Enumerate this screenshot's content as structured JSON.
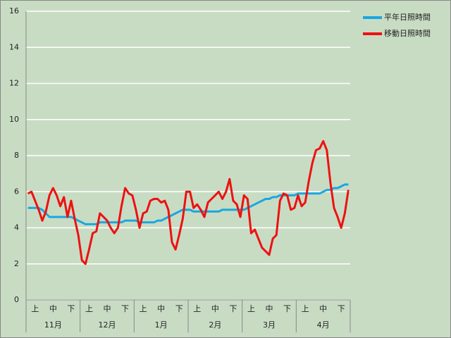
{
  "chart_data": {
    "type": "line",
    "categories": [
      null,
      null,
      "上",
      null,
      null,
      null,
      null,
      "中",
      null,
      null,
      null,
      null,
      "下",
      null,
      null,
      null,
      null,
      "上",
      null,
      null,
      null,
      null,
      "中",
      null,
      null,
      null,
      null,
      "下",
      null,
      null,
      null,
      null,
      "上",
      null,
      null,
      null,
      null,
      "中",
      null,
      null,
      null,
      null,
      "下",
      null,
      null,
      null,
      null,
      "上",
      null,
      null,
      null,
      null,
      "中",
      null,
      null,
      null,
      null,
      "下",
      null,
      null,
      null,
      null,
      "上",
      null,
      null,
      null,
      null,
      "中",
      null,
      null,
      null,
      null,
      "下",
      null,
      null,
      null,
      null,
      "上",
      null,
      null,
      null,
      null,
      "中",
      null,
      null,
      null,
      null,
      "下",
      null,
      null
    ],
    "months": [
      "11月",
      "12月",
      "1月",
      "2月",
      "3月",
      "4月"
    ],
    "series": [
      {
        "name": "平年日照時間",
        "color": "#1aa7e0",
        "values": [
          5.1,
          5.1,
          5.1,
          5.1,
          5.0,
          4.8,
          4.6,
          4.6,
          4.6,
          4.6,
          4.6,
          4.6,
          4.6,
          4.5,
          4.4,
          4.3,
          4.2,
          4.2,
          4.2,
          4.2,
          4.3,
          4.3,
          4.3,
          4.3,
          4.3,
          4.3,
          4.3,
          4.4,
          4.4,
          4.4,
          4.4,
          4.3,
          4.3,
          4.3,
          4.3,
          4.3,
          4.4,
          4.4,
          4.5,
          4.6,
          4.7,
          4.8,
          4.9,
          5.0,
          5.0,
          5.0,
          4.9,
          4.9,
          4.9,
          4.9,
          4.9,
          4.9,
          4.9,
          4.9,
          5.0,
          5.0,
          5.0,
          5.0,
          5.0,
          5.0,
          5.0,
          5.1,
          5.2,
          5.3,
          5.4,
          5.5,
          5.6,
          5.6,
          5.7,
          5.7,
          5.8,
          5.8,
          5.8,
          5.8,
          5.8,
          5.9,
          5.9,
          5.9,
          5.9,
          5.9,
          5.9,
          5.9,
          6.0,
          6.1,
          6.1,
          6.2,
          6.2,
          6.3,
          6.4,
          6.4
        ]
      },
      {
        "name": "移動日照時間",
        "color": "#ee1111",
        "values": [
          5.9,
          6.0,
          5.5,
          5.0,
          4.4,
          4.9,
          5.8,
          6.2,
          5.8,
          5.2,
          5.7,
          4.6,
          5.5,
          4.5,
          3.6,
          2.2,
          2.0,
          2.8,
          3.7,
          3.8,
          4.8,
          4.6,
          4.4,
          4.0,
          3.7,
          4.0,
          5.2,
          6.2,
          5.9,
          5.8,
          5.0,
          4.0,
          4.8,
          4.9,
          5.5,
          5.6,
          5.6,
          5.4,
          5.5,
          5.0,
          3.2,
          2.8,
          3.6,
          4.5,
          6.0,
          6.0,
          5.1,
          5.3,
          5.0,
          4.6,
          5.4,
          5.6,
          5.8,
          6.0,
          5.6,
          6.0,
          6.7,
          5.5,
          5.3,
          4.6,
          5.8,
          5.6,
          3.7,
          3.9,
          3.4,
          2.9,
          2.7,
          2.5,
          3.4,
          3.6,
          5.5,
          5.9,
          5.8,
          5.0,
          5.1,
          5.8,
          5.2,
          5.4,
          6.6,
          7.6,
          8.3,
          8.4,
          8.8,
          8.3,
          6.5,
          5.1,
          4.6,
          4.0,
          4.8,
          6.1
        ]
      }
    ],
    "ylim": [
      0,
      16
    ],
    "yticks": [
      0,
      2,
      4,
      6,
      8,
      10,
      12,
      14,
      16
    ],
    "grid": true
  }
}
